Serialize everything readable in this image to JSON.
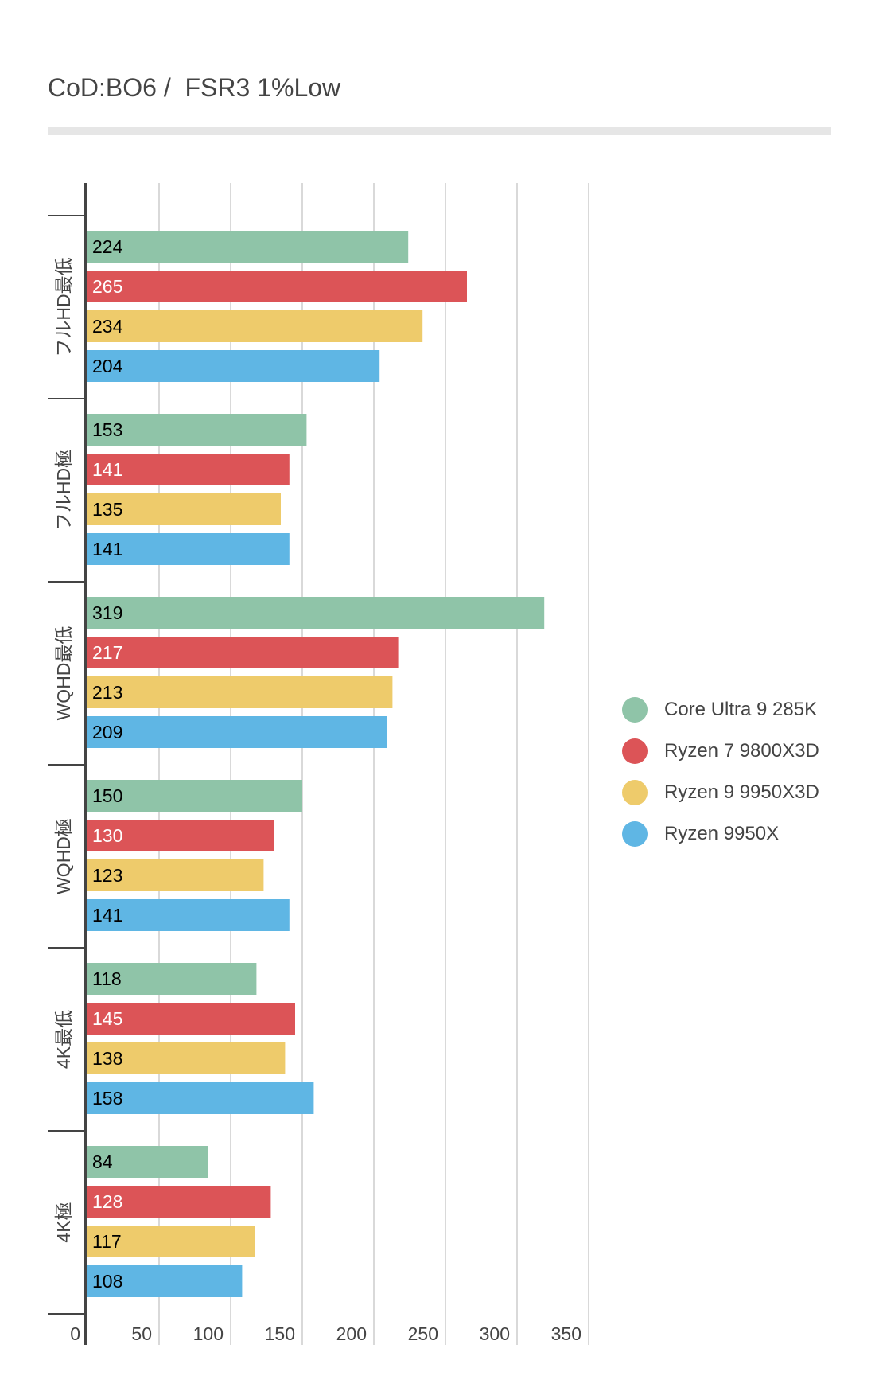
{
  "chart_data": {
    "type": "bar",
    "orientation": "horizontal",
    "title": "CoD:BO6 /  FSR3 1%Low",
    "xlabel": "",
    "ylabel": "",
    "xlim": [
      0,
      350
    ],
    "x_ticks": [
      0,
      50,
      100,
      150,
      200,
      250,
      300,
      350
    ],
    "grid": true,
    "legend_position": "right",
    "categories": [
      "フルHD最低",
      "フルHD極",
      "WQHD最低",
      "WQHD極",
      "4K最低",
      "4K極"
    ],
    "series": [
      {
        "name": "Core Ultra 9 285K",
        "color": "#8fc4a8",
        "label_color": "#000000",
        "values": [
          224,
          153,
          319,
          150,
          118,
          84
        ]
      },
      {
        "name": "Ryzen 7 9800X3D",
        "color": "#dc5457",
        "label_color": "#ffffff",
        "values": [
          265,
          141,
          217,
          130,
          145,
          128
        ]
      },
      {
        "name": "Ryzen 9 9950X3D",
        "color": "#eecb6b",
        "label_color": "#000000",
        "values": [
          234,
          135,
          213,
          123,
          138,
          117
        ]
      },
      {
        "name": "Ryzen 9950X",
        "color": "#5fb6e4",
        "label_color": "#000000",
        "values": [
          204,
          141,
          209,
          141,
          158,
          108
        ]
      }
    ],
    "data_labels": true
  }
}
